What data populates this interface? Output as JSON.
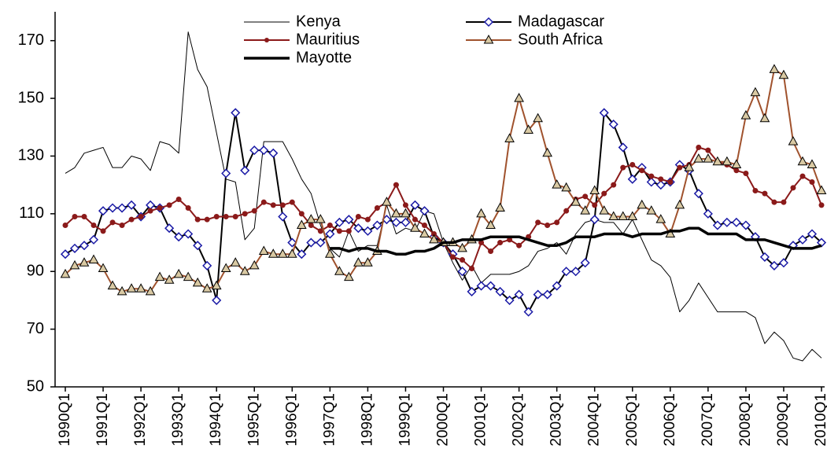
{
  "chart_data": {
    "type": "line",
    "categories": [
      "1990Q1",
      null,
      null,
      null,
      "1991Q1",
      null,
      null,
      null,
      "1992Q1",
      null,
      null,
      null,
      "1993Q1",
      null,
      null,
      null,
      "1994Q1",
      null,
      null,
      null,
      "1995Q1",
      null,
      null,
      null,
      "1996Q1",
      null,
      null,
      null,
      "1997Q1",
      null,
      null,
      null,
      "1998Q1",
      null,
      null,
      null,
      "1999Q1",
      null,
      null,
      null,
      "2000Q1",
      null,
      null,
      null,
      "2001Q1",
      null,
      null,
      null,
      "2002Q1",
      null,
      null,
      null,
      "2003Q1",
      null,
      null,
      null,
      "2004Q1",
      null,
      null,
      null,
      "2005Q1",
      null,
      null,
      null,
      "2006Q1",
      null,
      null,
      null,
      "2007Q1",
      null,
      null,
      null,
      "2008Q1",
      null,
      null,
      null,
      "2009Q1",
      null,
      null,
      null,
      "2010Q1"
    ],
    "series": [
      {
        "name": "Kenya",
        "color": "#000000",
        "width": 1,
        "marker": "none",
        "values": [
          124,
          126,
          131,
          132,
          133,
          126,
          126,
          130,
          129,
          125,
          135,
          134,
          131,
          173,
          160,
          154,
          138,
          122,
          121,
          101,
          105,
          135,
          135,
          135,
          129,
          122,
          117,
          106,
          98,
          95,
          104,
          97,
          99,
          99,
          113,
          103,
          105,
          104,
          111,
          110,
          100,
          93,
          87,
          92,
          86,
          89,
          89,
          89,
          90,
          92,
          97,
          98,
          100,
          96,
          103,
          107,
          108,
          107,
          107,
          103,
          108,
          101,
          94,
          92,
          88,
          76,
          80,
          86,
          81,
          76,
          76,
          76,
          76,
          74,
          65,
          69,
          66,
          60,
          59,
          63,
          60
        ]
      },
      {
        "name": "Madagascar",
        "color": "#000000",
        "width": 2,
        "marker": "diamond",
        "marker_color": "#1a1aa6",
        "values": [
          96,
          98,
          99,
          101,
          111,
          112,
          112,
          113,
          109,
          113,
          112,
          105,
          102,
          103,
          99,
          92,
          80,
          124,
          145,
          125,
          132,
          132,
          131,
          109,
          100,
          96,
          100,
          100,
          103,
          107,
          108,
          105,
          104,
          106,
          108,
          107,
          107,
          113,
          111,
          102,
          100,
          96,
          90,
          83,
          85,
          85,
          83,
          80,
          82,
          76,
          82,
          82,
          85,
          90,
          90,
          93,
          108,
          145,
          141,
          133,
          122,
          126,
          121,
          120,
          121,
          127,
          125,
          117,
          110,
          106,
          107,
          107,
          106,
          102,
          95,
          92,
          93,
          99,
          101,
          103,
          100
        ]
      },
      {
        "name": "Mauritius",
        "color": "#8b1a1a",
        "width": 2,
        "marker": "circle",
        "marker_color": "#8b1a1a",
        "values": [
          106,
          109,
          109,
          106,
          104,
          107,
          106,
          108,
          109,
          111,
          112,
          113,
          115,
          112,
          108,
          108,
          109,
          109,
          109,
          110,
          111,
          114,
          113,
          113,
          114,
          110,
          106,
          104,
          106,
          104,
          104,
          109,
          108,
          112,
          114,
          120,
          113,
          108,
          106,
          103,
          100,
          95,
          94,
          91,
          100,
          97,
          100,
          101,
          99,
          102,
          107,
          106,
          107,
          111,
          115,
          116,
          113,
          117,
          120,
          126,
          127,
          125,
          123,
          122,
          121,
          126,
          127,
          133,
          132,
          128,
          127,
          125,
          124,
          118,
          117,
          114,
          114,
          119,
          123,
          121,
          113
        ]
      },
      {
        "name": "South Africa",
        "color": "#a0522d",
        "width": 2,
        "marker": "triangle",
        "marker_color": "#d9c9a3",
        "values": [
          89,
          92,
          93,
          94,
          91,
          85,
          83,
          84,
          84,
          83,
          88,
          87,
          89,
          88,
          86,
          84,
          85,
          91,
          93,
          90,
          92,
          97,
          96,
          96,
          96,
          106,
          108,
          108,
          96,
          90,
          88,
          93,
          93,
          97,
          114,
          110,
          110,
          105,
          103,
          101,
          100,
          100,
          98,
          101,
          110,
          106,
          112,
          136,
          150,
          139,
          143,
          131,
          120,
          119,
          114,
          111,
          118,
          111,
          109,
          109,
          109,
          113,
          111,
          108,
          103,
          113,
          126,
          129,
          129,
          128,
          128,
          127,
          144,
          152,
          143,
          160,
          158,
          135,
          128,
          127,
          118
        ]
      },
      {
        "name": "Mayotte",
        "color": "#000000",
        "width": 3.5,
        "marker": "none",
        "values": [
          null,
          null,
          null,
          null,
          null,
          null,
          null,
          null,
          null,
          null,
          null,
          null,
          null,
          null,
          null,
          null,
          null,
          null,
          null,
          null,
          null,
          null,
          null,
          null,
          null,
          null,
          null,
          null,
          98,
          98,
          97,
          98,
          98,
          97,
          97,
          96,
          96,
          97,
          97,
          98,
          100,
          100,
          101,
          101,
          101,
          102,
          102,
          102,
          102,
          101,
          100,
          99,
          99,
          100,
          102,
          102,
          102,
          103,
          103,
          103,
          102,
          103,
          103,
          103,
          104,
          104,
          105,
          105,
          103,
          103,
          103,
          103,
          101,
          101,
          101,
          100,
          99,
          98,
          98,
          98,
          99
        ]
      }
    ],
    "ylim": [
      50,
      180
    ],
    "yticks": [
      50,
      70,
      90,
      110,
      130,
      150,
      170
    ],
    "grid": false
  }
}
